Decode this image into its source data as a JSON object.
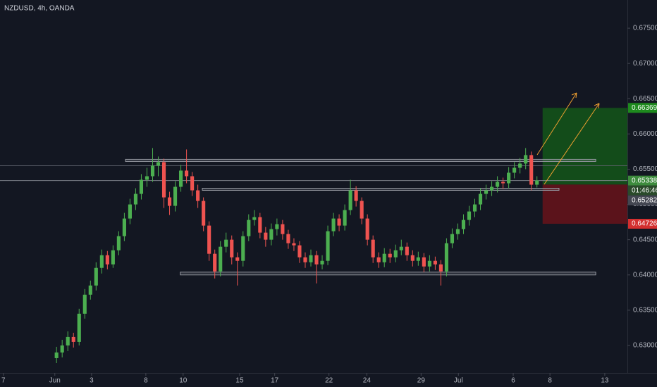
{
  "chart_data": {
    "type": "candlestick",
    "title": "NZDUSD, 4h, OANDA",
    "up_color": "#4caf50",
    "down_color": "#ef5350",
    "xlim": [
      0,
      111
    ],
    "ylim": [
      0.6261,
      0.679
    ],
    "xticks": [
      {
        "value": 0.6,
        "label": "7"
      },
      {
        "value": 9.7,
        "label": "Jun"
      },
      {
        "value": 16.2,
        "label": "3"
      },
      {
        "value": 25.8,
        "label": "8"
      },
      {
        "value": 32.4,
        "label": "10"
      },
      {
        "value": 42.4,
        "label": "15"
      },
      {
        "value": 48.6,
        "label": "17"
      },
      {
        "value": 58.2,
        "label": "22"
      },
      {
        "value": 64.9,
        "label": "24"
      },
      {
        "value": 74.5,
        "label": "29"
      },
      {
        "value": 81.1,
        "label": "Jul"
      },
      {
        "value": 90.8,
        "label": "6"
      },
      {
        "value": 97.3,
        "label": "8"
      },
      {
        "value": 107.0,
        "label": "13"
      }
    ],
    "yticks": [
      {
        "value": 0.63,
        "label": "0.63000"
      },
      {
        "value": 0.635,
        "label": "0.63500"
      },
      {
        "value": 0.64,
        "label": "0.64000"
      },
      {
        "value": 0.645,
        "label": "0.64500"
      },
      {
        "value": 0.65,
        "label": "0.65000"
      },
      {
        "value": 0.655,
        "label": "0.65500"
      },
      {
        "value": 0.66,
        "label": "0.66000"
      },
      {
        "value": 0.665,
        "label": "0.66500"
      },
      {
        "value": 0.67,
        "label": "0.67000"
      },
      {
        "value": 0.675,
        "label": "0.67500"
      }
    ],
    "x": [
      10,
      11,
      12,
      13,
      14,
      15,
      16,
      17,
      18,
      19,
      20,
      21,
      22,
      23,
      24,
      25,
      26,
      27,
      28,
      29,
      30,
      31,
      32,
      33,
      34,
      35,
      36,
      37,
      38,
      39,
      40,
      41,
      42,
      43,
      44,
      45,
      46,
      47,
      48,
      49,
      50,
      51,
      52,
      53,
      54,
      55,
      56,
      57,
      58,
      59,
      60,
      61,
      62,
      63,
      64,
      65,
      66,
      67,
      68,
      69,
      70,
      71,
      72,
      73,
      74,
      75,
      76,
      77,
      78,
      79,
      80,
      81,
      82,
      83,
      84,
      85,
      86,
      87,
      88,
      89,
      90,
      91,
      92,
      93,
      94,
      95
    ],
    "candles": [
      [
        0.6282,
        0.6298,
        0.6275,
        0.629
      ],
      [
        0.629,
        0.6308,
        0.6283,
        0.63
      ],
      [
        0.63,
        0.632,
        0.6292,
        0.6312
      ],
      [
        0.6312,
        0.6318,
        0.6297,
        0.6305
      ],
      [
        0.6305,
        0.6352,
        0.63,
        0.6345
      ],
      [
        0.6345,
        0.638,
        0.6338,
        0.6372
      ],
      [
        0.6372,
        0.6392,
        0.6365,
        0.6385
      ],
      [
        0.6385,
        0.6418,
        0.6378,
        0.641
      ],
      [
        0.641,
        0.6436,
        0.6402,
        0.6428
      ],
      [
        0.6428,
        0.6434,
        0.6408,
        0.6415
      ],
      [
        0.6415,
        0.6442,
        0.641,
        0.6435
      ],
      [
        0.6435,
        0.6462,
        0.6428,
        0.6455
      ],
      [
        0.6455,
        0.6488,
        0.6448,
        0.648
      ],
      [
        0.648,
        0.6508,
        0.6472,
        0.65
      ],
      [
        0.65,
        0.6523,
        0.6492,
        0.6515
      ],
      [
        0.6515,
        0.6543,
        0.6507,
        0.6535
      ],
      [
        0.6535,
        0.6552,
        0.6525,
        0.654
      ],
      [
        0.654,
        0.658,
        0.6532,
        0.6555
      ],
      [
        0.6555,
        0.6568,
        0.654,
        0.656
      ],
      [
        0.656,
        0.6565,
        0.6495,
        0.651
      ],
      [
        0.651,
        0.6518,
        0.6485,
        0.6498
      ],
      [
        0.6498,
        0.6533,
        0.649,
        0.6525
      ],
      [
        0.6525,
        0.6556,
        0.6518,
        0.6548
      ],
      [
        0.6548,
        0.6578,
        0.653,
        0.654
      ],
      [
        0.654,
        0.6546,
        0.6512,
        0.652
      ],
      [
        0.652,
        0.6528,
        0.6495,
        0.6505
      ],
      [
        0.6505,
        0.651,
        0.6462,
        0.647
      ],
      [
        0.647,
        0.6476,
        0.642,
        0.643
      ],
      [
        0.643,
        0.6436,
        0.6395,
        0.6405
      ],
      [
        0.6405,
        0.6448,
        0.6398,
        0.644
      ],
      [
        0.644,
        0.646,
        0.6432,
        0.645
      ],
      [
        0.645,
        0.6456,
        0.6415,
        0.6425
      ],
      [
        0.6425,
        0.6432,
        0.6385,
        0.642
      ],
      [
        0.642,
        0.6462,
        0.6412,
        0.6455
      ],
      [
        0.6455,
        0.6486,
        0.6448,
        0.6478
      ],
      [
        0.6478,
        0.6492,
        0.647,
        0.6482
      ],
      [
        0.6482,
        0.6488,
        0.6452,
        0.646
      ],
      [
        0.646,
        0.6468,
        0.644,
        0.645
      ],
      [
        0.645,
        0.6473,
        0.6442,
        0.6465
      ],
      [
        0.6465,
        0.648,
        0.6456,
        0.6472
      ],
      [
        0.6472,
        0.6478,
        0.645,
        0.6458
      ],
      [
        0.6458,
        0.6464,
        0.6437,
        0.6445
      ],
      [
        0.6445,
        0.6452,
        0.6434,
        0.6442
      ],
      [
        0.6442,
        0.6448,
        0.6417,
        0.6425
      ],
      [
        0.6425,
        0.6432,
        0.641,
        0.6418
      ],
      [
        0.6418,
        0.6436,
        0.6412,
        0.6428
      ],
      [
        0.6428,
        0.6434,
        0.6388,
        0.6415
      ],
      [
        0.6415,
        0.6428,
        0.6408,
        0.642
      ],
      [
        0.642,
        0.647,
        0.6414,
        0.6462
      ],
      [
        0.6462,
        0.6488,
        0.6455,
        0.648
      ],
      [
        0.648,
        0.6486,
        0.6462,
        0.647
      ],
      [
        0.647,
        0.65,
        0.6463,
        0.6492
      ],
      [
        0.6492,
        0.6535,
        0.6485,
        0.652
      ],
      [
        0.652,
        0.6526,
        0.6497,
        0.6505
      ],
      [
        0.6505,
        0.651,
        0.6472,
        0.648
      ],
      [
        0.648,
        0.6486,
        0.6442,
        0.645
      ],
      [
        0.645,
        0.6456,
        0.6417,
        0.6425
      ],
      [
        0.6425,
        0.6432,
        0.641,
        0.6418
      ],
      [
        0.6418,
        0.6438,
        0.6411,
        0.643
      ],
      [
        0.643,
        0.6437,
        0.6417,
        0.6425
      ],
      [
        0.6425,
        0.6443,
        0.6418,
        0.6435
      ],
      [
        0.6435,
        0.645,
        0.6428,
        0.644
      ],
      [
        0.644,
        0.6446,
        0.642,
        0.6428
      ],
      [
        0.6428,
        0.6435,
        0.6412,
        0.642
      ],
      [
        0.642,
        0.6433,
        0.6413,
        0.6425
      ],
      [
        0.6425,
        0.6431,
        0.6404,
        0.6412
      ],
      [
        0.6412,
        0.6428,
        0.6405,
        0.642
      ],
      [
        0.642,
        0.6426,
        0.6407,
        0.6415
      ],
      [
        0.6415,
        0.6421,
        0.6385,
        0.6405
      ],
      [
        0.6405,
        0.6452,
        0.6398,
        0.6445
      ],
      [
        0.6445,
        0.6466,
        0.6438,
        0.6458
      ],
      [
        0.6458,
        0.6473,
        0.645,
        0.6465
      ],
      [
        0.6465,
        0.6486,
        0.6458,
        0.6478
      ],
      [
        0.6478,
        0.6498,
        0.647,
        0.649
      ],
      [
        0.649,
        0.6508,
        0.6482,
        0.65
      ],
      [
        0.65,
        0.6523,
        0.6492,
        0.6515
      ],
      [
        0.6515,
        0.6528,
        0.6507,
        0.652
      ],
      [
        0.652,
        0.6533,
        0.6512,
        0.6525
      ],
      [
        0.6525,
        0.654,
        0.6517,
        0.6532
      ],
      [
        0.6532,
        0.6538,
        0.6522,
        0.653
      ],
      [
        0.653,
        0.6553,
        0.6523,
        0.6545
      ],
      [
        0.6545,
        0.656,
        0.6537,
        0.6552
      ],
      [
        0.6552,
        0.6566,
        0.6544,
        0.6558
      ],
      [
        0.6558,
        0.658,
        0.655,
        0.657
      ],
      [
        0.657,
        0.6575,
        0.652,
        0.6528
      ],
      [
        0.6528,
        0.654,
        0.6524,
        0.6534
      ]
    ],
    "zones": [
      {
        "top": 0.6564,
        "bottom": 0.6561,
        "x0": 22.2,
        "x1": 105.4
      },
      {
        "top": 0.6523,
        "bottom": 0.652,
        "x0": 35.8,
        "x1": 98.9
      },
      {
        "top": 0.6404,
        "bottom": 0.64,
        "x0": 31.9,
        "x1": 105.4
      }
    ],
    "hline": 0.6555,
    "last_price": {
      "value": 0.65338,
      "label": "0.65338"
    },
    "countdown": "01:46:46",
    "position": {
      "x0": 96.0,
      "x1": 111,
      "entry": {
        "value": 0.65282,
        "label": "0.65282"
      },
      "target": {
        "value": 0.66369,
        "label": "0.66369"
      },
      "stop": {
        "value": 0.64726,
        "label": "0.64726"
      }
    }
  }
}
